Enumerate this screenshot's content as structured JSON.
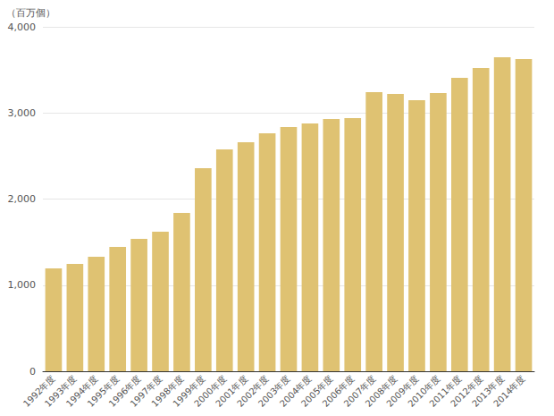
{
  "chart_data": {
    "type": "bar",
    "ylabel": "（百万個）",
    "categories": [
      "1992年度",
      "1993年度",
      "1994年度",
      "1995年度",
      "1996年度",
      "1997年度",
      "1998年度",
      "1999年度",
      "2000年度",
      "2001年度",
      "2002年度",
      "2003年度",
      "2004年度",
      "2005年度",
      "2006年度",
      "2007年度",
      "2008年度",
      "2009年度",
      "2010年度",
      "2011年度",
      "2012年度",
      "2013年度",
      "2014年度"
    ],
    "values": [
      1195,
      1247,
      1330,
      1444,
      1538,
      1621,
      1839,
      2358,
      2577,
      2660,
      2764,
      2836,
      2878,
      2930,
      2940,
      3242,
      3221,
      3148,
      3231,
      3408,
      3522,
      3647,
      3626
    ],
    "color": "#dfc272",
    "ylim": [
      0,
      4000
    ],
    "yticks": [
      0,
      {
        "value": 1000,
        "label": "1,000"
      },
      {
        "value": 2000,
        "label": "2,000"
      },
      {
        "value": 3000,
        "label": "3,000"
      },
      {
        "value": 4000,
        "label": "4,000"
      }
    ],
    "grid": true
  }
}
